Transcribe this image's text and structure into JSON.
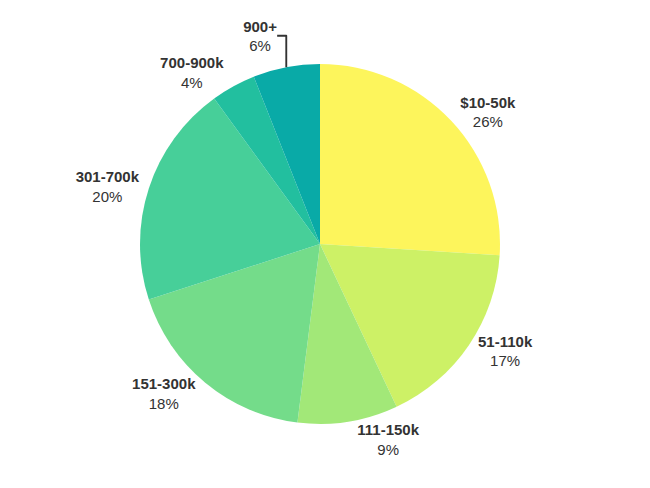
{
  "chart_data": {
    "type": "pie",
    "categories": [
      "$10-50k",
      "51-110k",
      "111-150k",
      "151-300k",
      "301-700k",
      "700-900k",
      "900+"
    ],
    "values": [
      26,
      17,
      9,
      18,
      20,
      4,
      6
    ],
    "value_labels": [
      "26%",
      "17%",
      "9%",
      "18%",
      "20%",
      "4%",
      "6%"
    ],
    "colors": [
      "#fdf55c",
      "#cdf166",
      "#a2e878",
      "#74dc8a",
      "#47cf99",
      "#22bf9f",
      "#09aaa7"
    ],
    "data_labels": true
  }
}
